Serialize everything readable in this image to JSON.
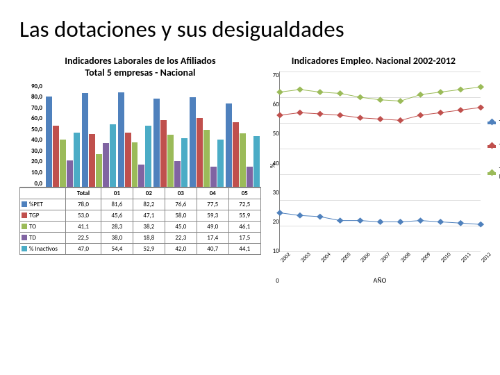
{
  "title": "Las dotaciones y sus desigualdades",
  "left_chart": {
    "title": "Indicadores Laborales de los Afiliados\nTotal 5 empresas - Nacional",
    "y_ticks": [
      "90,0",
      "80,0",
      "70,0",
      "60,0",
      "50,0",
      "40,0",
      "30,0",
      "20,0",
      "10,0",
      "0,0"
    ],
    "y_max": 90,
    "categories": [
      "Total",
      "01",
      "02",
      "03",
      "04",
      "05"
    ],
    "series": [
      {
        "name": "%PET",
        "color": "#4f81bd",
        "values": [
          78.0,
          81.6,
          82.2,
          76.6,
          77.5,
          72.5
        ]
      },
      {
        "name": "TGP",
        "color": "#c0504d",
        "values": [
          53.0,
          45.6,
          47.1,
          58.0,
          59.3,
          55.9
        ]
      },
      {
        "name": "TO",
        "color": "#9bbb59",
        "values": [
          41.1,
          28.3,
          38.2,
          45.0,
          49.0,
          46.1
        ]
      },
      {
        "name": "TD",
        "color": "#8064a2",
        "values": [
          22.5,
          38.0,
          18.8,
          22.3,
          17.4,
          17.5
        ]
      },
      {
        "name": "% Inactivos",
        "color": "#4bacc6",
        "values": [
          47.0,
          54.4,
          52.9,
          42.0,
          40.7,
          44.1
        ]
      }
    ]
  },
  "right_chart": {
    "title": "Indicadores Empleo. Nacional 2002-2012",
    "y_ticks": [
      "70",
      "60",
      "50",
      "40",
      "30",
      "20",
      "10",
      "0"
    ],
    "y_max": 70,
    "y_label": "%",
    "x_label": "AÑO",
    "x_vals": [
      "2002",
      "2003",
      "2004",
      "2005",
      "2006",
      "2007",
      "2008",
      "2009",
      "2010",
      "2011",
      "2012"
    ],
    "series": [
      {
        "name": "Tasa de Desempleo",
        "color": "#4f81bd",
        "values": [
          15,
          14,
          13.5,
          12,
          12,
          11.5,
          11.5,
          12,
          11.5,
          11,
          10.5
        ]
      },
      {
        "name": "Tasa de Ocupados",
        "color": "#c0504d",
        "values": [
          53,
          54,
          53.5,
          53,
          52,
          51.5,
          51,
          53,
          54,
          55,
          56
        ]
      },
      {
        "name": "Tasa General de Participación",
        "color": "#9bbb59",
        "values": [
          62,
          63,
          62,
          61.5,
          60,
          59,
          58.5,
          61,
          62,
          63,
          64
        ]
      }
    ],
    "grid_color": "#dddddd",
    "marker": "diamond"
  }
}
